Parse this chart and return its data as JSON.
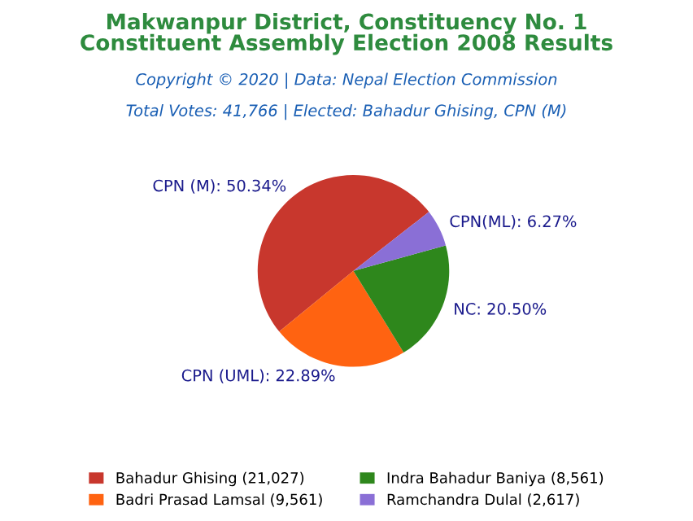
{
  "chart_data": {
    "type": "pie",
    "title": "Makwanpur District, Constituency No. 1\nConstituent Assembly Election 2008 Results",
    "subtitle": "Copyright © 2020 | Data: Nepal Election Commission",
    "annotations": [
      "Total Votes: 41,766 | Elected: Bahadur Ghising, CPN (M)"
    ],
    "categories": [
      "Bahadur Ghising (21,027)",
      "Badri Prasad Lamsal (9,561)",
      "Indra Bahadur Baniya (8,561)",
      "Ramchandra Dulal (2,617)"
    ],
    "values": [
      50.34,
      22.89,
      20.5,
      6.27
    ],
    "value_labels": [
      "CPN (M): 50.34%",
      "CPN (UML): 22.89%",
      "NC: 20.50%",
      "CPN(ML): 6.27%"
    ],
    "colors": [
      "#c8372d",
      "#ff6311",
      "#2e871c",
      "#8a6fd6"
    ],
    "legend": "bottom"
  }
}
